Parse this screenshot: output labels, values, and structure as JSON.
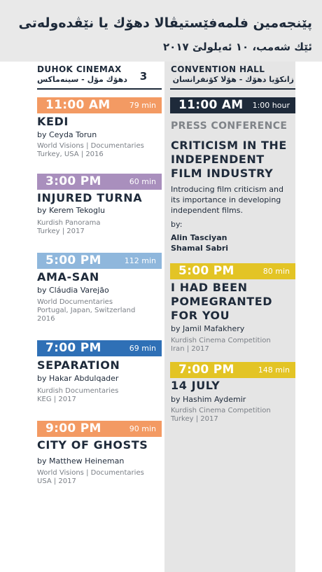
{
  "header": {
    "title": "پێنجەمین فلمەفێستیڤالا دهۆك یا نێڤدەولەتی",
    "date": "ئێك شەمب، ١٠ ئەیلولێ ٢٠١٧"
  },
  "venues": {
    "left": {
      "name": "DUHOK CINEMAX",
      "name_ku": "دهۆك مۆل - سینەماكس"
    },
    "right": {
      "name": "CONVENTION HALL",
      "name_ku": "زانكۆیا دهۆك - هۆلا كۆنفرانسان"
    },
    "day_number": "3"
  },
  "colors": {
    "navy": "#1e2a3a",
    "orange": "#f39a63",
    "purple": "#a98fbd",
    "lightblue": "#8fb7dc",
    "blue": "#2f70b6",
    "yellow": "#e3c425"
  },
  "left_events": [
    {
      "time": "11:00 AM",
      "duration": "79 min",
      "title": "KEDI",
      "director": "by Ceyda Torun",
      "meta1": "World Visions | Documentaries",
      "meta2": "Turkey, USA | 2016",
      "meta3": ""
    },
    {
      "time": "3:00 PM",
      "duration": "60 min",
      "title": "INJURED TURNA",
      "director": "by Kerem Tekoglu",
      "meta1": "Kurdish Panorama",
      "meta2": "Turkey | 2017",
      "meta3": ""
    },
    {
      "time": "5:00 PM",
      "duration": "112 min",
      "title": "AMA-SAN",
      "director": "by Cláudia Varejão",
      "meta1": "World Documentaries",
      "meta2": "Portugal, Japan, Switzerland",
      "meta3": "2016"
    },
    {
      "time": "7:00 PM",
      "duration": "69 min",
      "title": "SEPARATION",
      "director": "by Hakar Abdulqader",
      "meta1": "Kurdish Documentaries",
      "meta2": "KEG | 2017",
      "meta3": ""
    },
    {
      "time": "9:00 PM",
      "duration": "90 min",
      "title": "CITY OF GHOSTS",
      "director": "by Matthew Heineman",
      "meta1": "World Visions | Documentaries",
      "meta2": "USA | 2017",
      "meta3": ""
    }
  ],
  "right_events": {
    "press": {
      "time": "11:00 AM",
      "duration": "1:00 hour",
      "label": "PRESS CONFERENCE",
      "title_lines": [
        "CRITICISM IN THE",
        "INDEPENDENT",
        "FILM INDUSTRY"
      ],
      "desc_lines": [
        "Introducing film criticism and",
        "its importance in developing",
        "independent films."
      ],
      "by": "by:",
      "speakers": [
        "Alin Tasciyan",
        "Shamal Sabri"
      ]
    },
    "films": [
      {
        "time": "5:00 PM",
        "duration": "80 min",
        "title_lines": [
          "I HAD BEEN",
          "POMEGRANTED",
          "FOR YOU"
        ],
        "director": "by Jamil Mafakhery",
        "meta1": "Kurdish Cinema Competition",
        "meta2": "Iran | 2017"
      },
      {
        "time": "7:00 PM",
        "duration": "148 min",
        "title_lines": [
          "14 JULY"
        ],
        "director": "by Hashim Aydemir",
        "meta1": "Kurdish Cinema Competition",
        "meta2": "Turkey | 2017"
      }
    ]
  }
}
